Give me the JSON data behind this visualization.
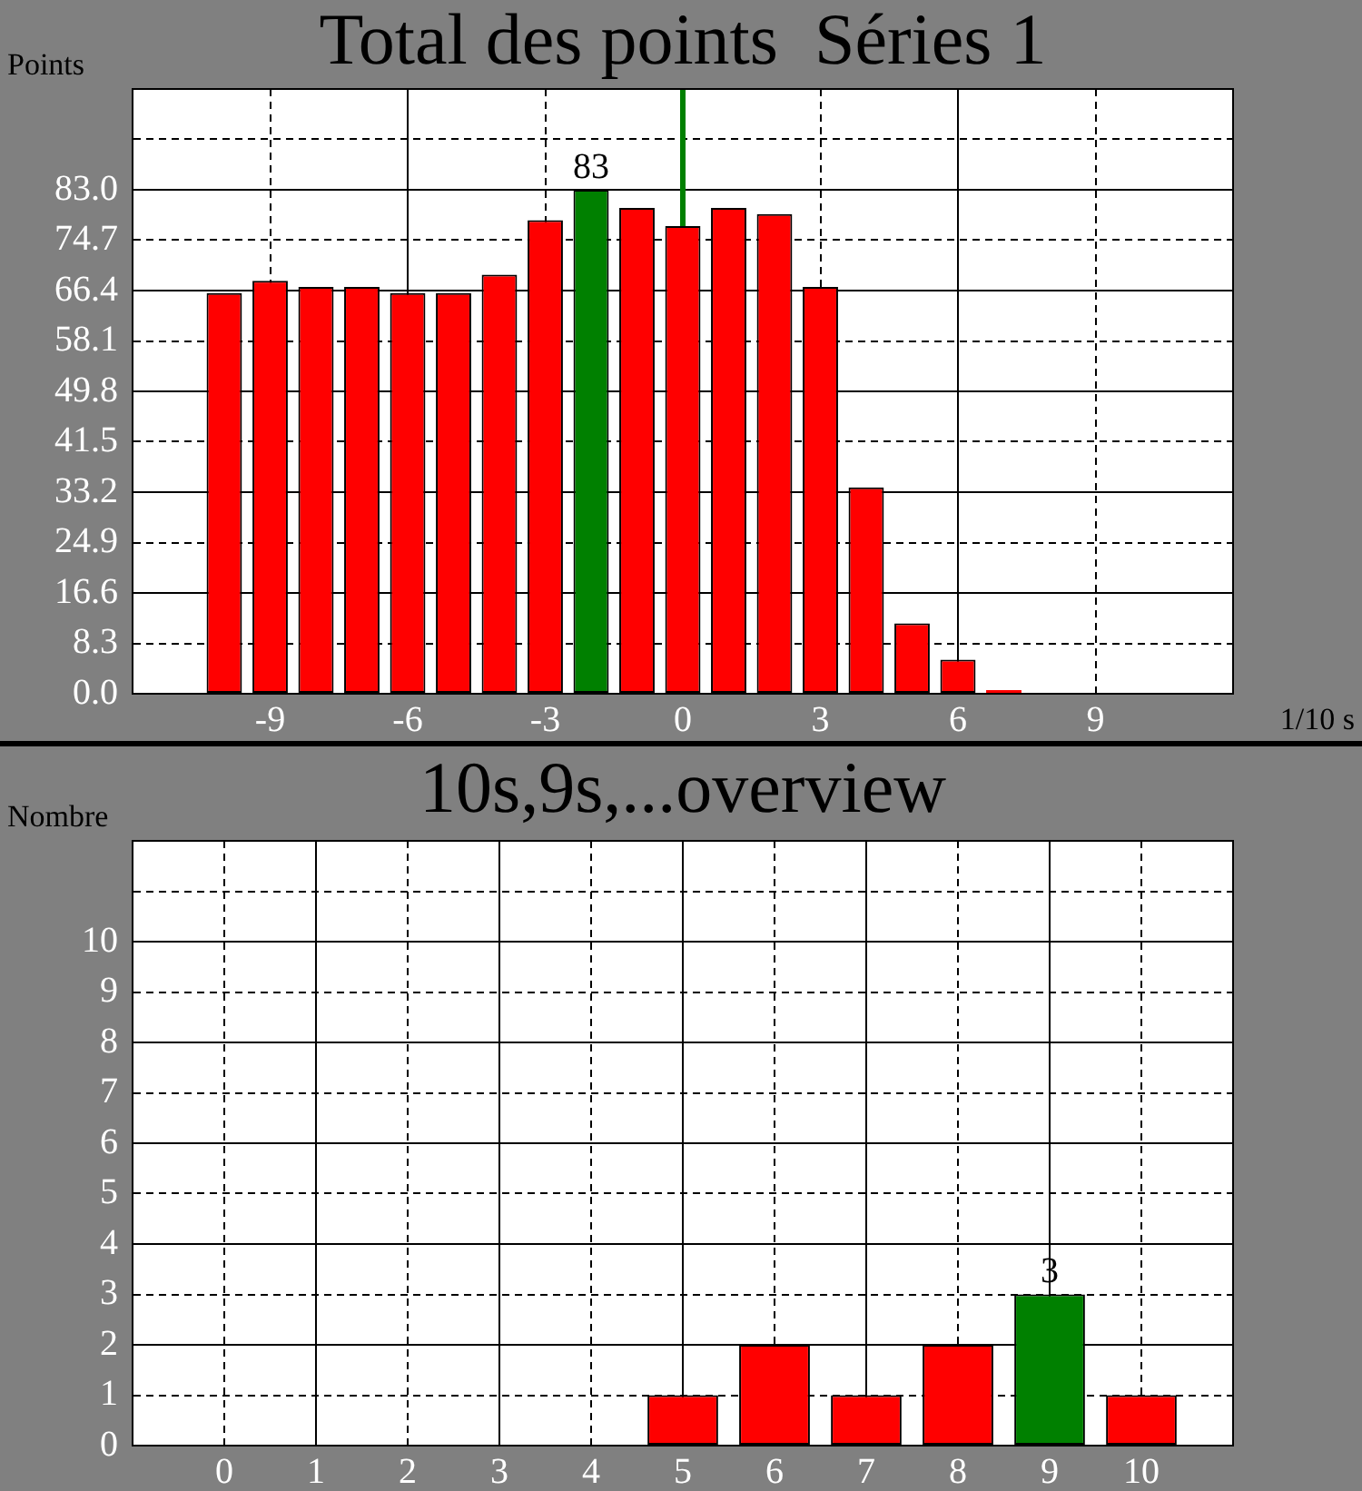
{
  "chart_data": [
    {
      "type": "bar",
      "title": "Total des points  Séries 1",
      "xlabel": "1/10 s",
      "ylabel": "Points",
      "x": [
        -10,
        -9,
        -8,
        -7,
        -6,
        -5,
        -4,
        -3,
        -2,
        -1,
        0,
        1,
        2,
        3,
        4,
        5,
        6,
        7
      ],
      "values": [
        66,
        68,
        67,
        67,
        66,
        66,
        69,
        78,
        83,
        80,
        77,
        80,
        79,
        67,
        34,
        11.6,
        5.6,
        0.6
      ],
      "colors": [
        "#ff0000",
        "#ff0000",
        "#ff0000",
        "#ff0000",
        "#ff0000",
        "#ff0000",
        "#ff0000",
        "#ff0000",
        "#008000",
        "#ff0000",
        "#ff0000",
        "#ff0000",
        "#ff0000",
        "#ff0000",
        "#ff0000",
        "#ff0000",
        "#ff0000",
        "#ff0000"
      ],
      "value_labels": [
        null,
        null,
        null,
        null,
        null,
        null,
        null,
        null,
        "83",
        null,
        null,
        null,
        null,
        null,
        null,
        null,
        null,
        null
      ],
      "xlim": [
        -12,
        12
      ],
      "xticks": [
        -9,
        -6,
        -3,
        0,
        3,
        6,
        9
      ],
      "ylim": [
        0,
        99.6
      ],
      "yticks": [
        {
          "value": 0,
          "label": "0.0"
        },
        8.3,
        16.6,
        24.9,
        33.2,
        41.5,
        49.8,
        58.1,
        66.4,
        74.7,
        {
          "value": 83,
          "label": "83.0"
        },
        {
          "value": 91.3,
          "label": null
        },
        {
          "value": 99.6,
          "label": null
        }
      ],
      "grid": true,
      "ref_lines": [
        {
          "axis": "x",
          "value": 0,
          "color": "#008000"
        }
      ]
    },
    {
      "type": "bar",
      "title": "10s,9s,...overview",
      "ylabel": "Nombre",
      "x": [
        0,
        1,
        2,
        3,
        4,
        5,
        6,
        7,
        8,
        9,
        10
      ],
      "values": [
        0,
        0,
        0,
        0,
        0,
        1,
        2,
        1,
        2,
        3,
        1
      ],
      "colors": [
        "#ff0000",
        "#ff0000",
        "#ff0000",
        "#ff0000",
        "#ff0000",
        "#ff0000",
        "#ff0000",
        "#ff0000",
        "#ff0000",
        "#008000",
        "#ff0000"
      ],
      "value_labels": [
        null,
        null,
        null,
        null,
        null,
        null,
        null,
        null,
        null,
        "3",
        null
      ],
      "xlim": [
        -1,
        11
      ],
      "xticks": [
        0,
        1,
        2,
        3,
        4,
        5,
        6,
        7,
        8,
        9,
        10
      ],
      "ylim": [
        0,
        12
      ],
      "yticks": [
        0,
        1,
        2,
        3,
        4,
        5,
        6,
        7,
        8,
        9,
        10,
        {
          "value": 11,
          "label": null
        },
        {
          "value": 12,
          "label": null
        }
      ],
      "grid": true
    }
  ]
}
